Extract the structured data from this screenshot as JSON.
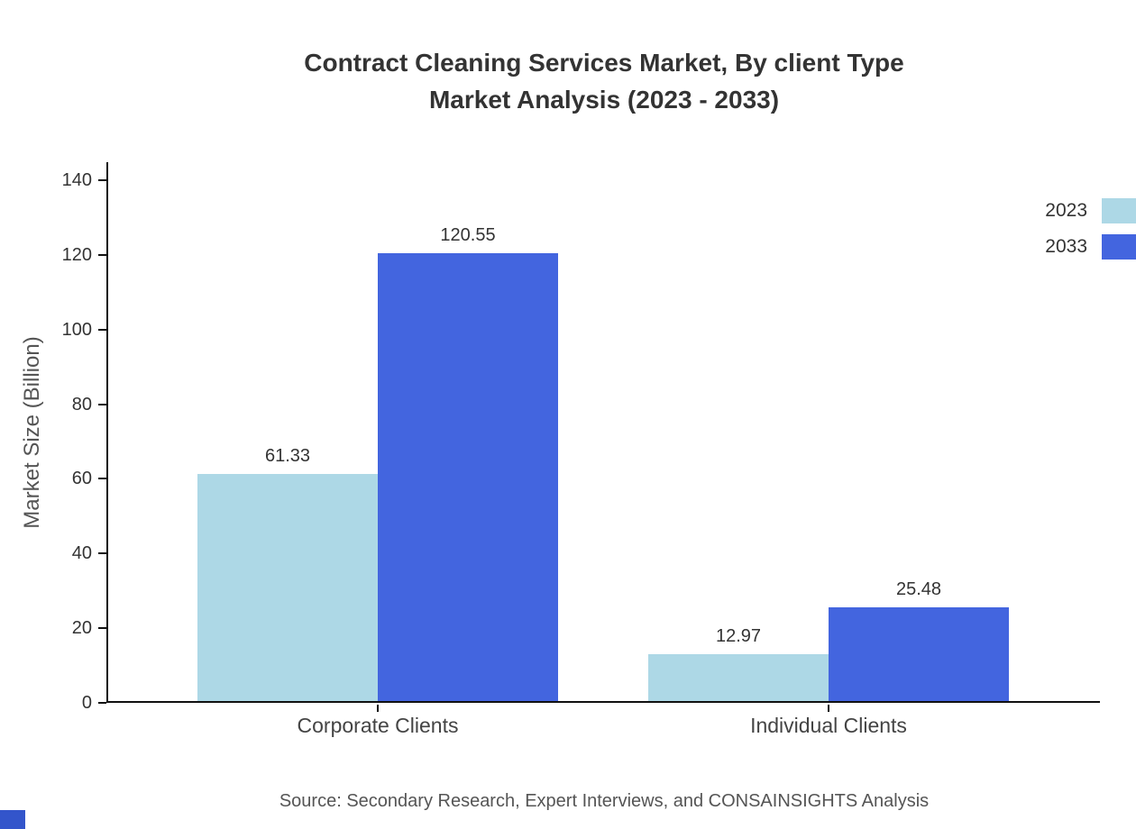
{
  "page": {
    "title_line1": "Contract Cleaning Services Market, By client Type",
    "title_line2": "Market Analysis (2023 - 2033)",
    "source_note": "Source: Secondary Research, Expert Interviews, and CONSAINSIGHTS Analysis"
  },
  "colors": {
    "series_2023": "#ADD8E6",
    "series_2033": "#4365DF",
    "axis": "#111111",
    "title_text": "#333333",
    "secondary_text": "#555555",
    "logo_accent": "#3355CB"
  },
  "chart_data": {
    "type": "bar",
    "title": "Contract Cleaning Services Market, By client Type — Market Analysis (2023 - 2033)",
    "categories": [
      "Corporate Clients",
      "Individual Clients"
    ],
    "series": [
      {
        "name": "2023",
        "color": "#ADD8E6",
        "values": [
          61.33,
          12.97
        ]
      },
      {
        "name": "2033",
        "color": "#4365DF",
        "values": [
          120.55,
          25.48
        ]
      }
    ],
    "xlabel": "",
    "ylabel": "Market Size (Billion)",
    "ylim": [
      0,
      140
    ],
    "yticks": [
      0,
      20,
      40,
      60,
      80,
      100,
      120,
      140
    ],
    "value_labels": true,
    "grid": false,
    "legend_position": "top-right",
    "legend_entries": [
      "2023",
      "2033"
    ]
  }
}
